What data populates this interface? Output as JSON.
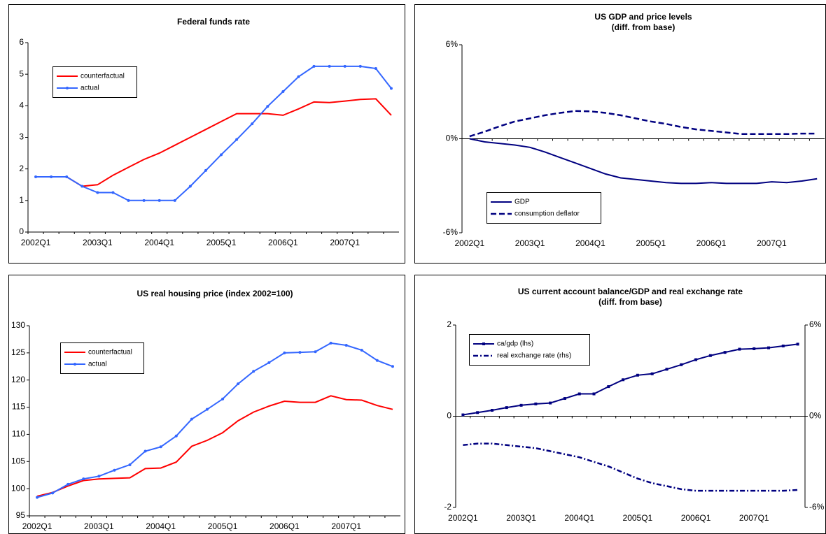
{
  "chart_data": [
    {
      "type": "line",
      "title": "Federal funds rate",
      "categories": [
        "2002Q1",
        null,
        null,
        null,
        "2003Q1",
        null,
        null,
        null,
        "2004Q1",
        null,
        null,
        null,
        "2005Q1",
        null,
        null,
        null,
        "2006Q1",
        null,
        null,
        null,
        "2007Q1",
        null,
        null,
        null
      ],
      "series": [
        {
          "name": "counterfactual",
          "color": "#ff0000",
          "values": [
            1.75,
            1.75,
            1.75,
            1.45,
            1.5,
            1.8,
            2.05,
            2.3,
            2.5,
            2.75,
            3.0,
            3.25,
            3.5,
            3.75,
            3.75,
            3.75,
            3.7,
            3.9,
            4.12,
            4.1,
            4.15,
            4.2,
            4.22,
            3.7
          ]
        },
        {
          "name": "actual",
          "color": "#3366ff",
          "marker": "circle",
          "values": [
            1.75,
            1.75,
            1.75,
            1.45,
            1.25,
            1.25,
            1.0,
            1.0,
            1.0,
            1.0,
            1.45,
            1.95,
            2.45,
            2.93,
            3.43,
            3.98,
            4.45,
            4.92,
            5.25,
            5.25,
            5.25,
            5.25,
            5.18,
            4.55
          ]
        }
      ],
      "ylim": [
        0,
        6
      ],
      "yticks": [
        0,
        1,
        2,
        3,
        4,
        5,
        6
      ]
    },
    {
      "type": "line",
      "title": "US GDP and price levels",
      "subtitle": "(diff. from base)",
      "categories": [
        "2002Q1",
        null,
        null,
        null,
        "2003Q1",
        null,
        null,
        null,
        "2004Q1",
        null,
        null,
        null,
        "2005Q1",
        null,
        null,
        null,
        "2006Q1",
        null,
        null,
        null,
        "2007Q1",
        null,
        null,
        null
      ],
      "series": [
        {
          "name": "GDP",
          "color": "#000080",
          "values": [
            0,
            -0.2,
            -0.3,
            -0.4,
            -0.55,
            -0.85,
            -1.2,
            -1.55,
            -1.9,
            -2.25,
            -2.5,
            -2.6,
            -2.7,
            -2.8,
            -2.85,
            -2.85,
            -2.8,
            -2.85,
            -2.85,
            -2.85,
            -2.75,
            -2.8,
            -2.7,
            -2.55
          ]
        },
        {
          "name": "consumption deflator",
          "color": "#000080",
          "dash": "dash",
          "values": [
            0.15,
            0.45,
            0.8,
            1.1,
            1.3,
            1.5,
            1.65,
            1.77,
            1.75,
            1.65,
            1.5,
            1.3,
            1.1,
            0.95,
            0.75,
            0.6,
            0.5,
            0.4,
            0.3,
            0.3,
            0.3,
            0.3,
            0.33,
            0.33
          ]
        }
      ],
      "ylim": [
        -6,
        6
      ],
      "yticks": [
        {
          "value": -6,
          "label": "-6%"
        },
        {
          "value": 0,
          "label": "0%"
        },
        {
          "value": 6,
          "label": "6%"
        }
      ]
    },
    {
      "type": "line",
      "title": "US real housing price (index 2002=100)",
      "categories": [
        "2002Q1",
        null,
        null,
        null,
        "2003Q1",
        null,
        null,
        null,
        "2004Q1",
        null,
        null,
        null,
        "2005Q1",
        null,
        null,
        null,
        "2006Q1",
        null,
        null,
        null,
        "2007Q1",
        null,
        null,
        null
      ],
      "series": [
        {
          "name": "counterfactual",
          "color": "#ff0000",
          "values": [
            98.6,
            99.3,
            100.5,
            101.5,
            101.8,
            101.9,
            102.0,
            103.7,
            103.8,
            104.9,
            107.8,
            108.9,
            110.3,
            112.5,
            114.1,
            115.2,
            116.1,
            115.9,
            115.9,
            117.1,
            116.4,
            116.3,
            115.3,
            114.6
          ]
        },
        {
          "name": "actual",
          "color": "#3366ff",
          "marker": "circle",
          "values": [
            98.4,
            99.2,
            100.8,
            101.8,
            102.3,
            103.4,
            104.4,
            106.9,
            107.7,
            109.7,
            112.8,
            114.6,
            116.5,
            119.3,
            121.6,
            123.2,
            125.0,
            125.1,
            125.2,
            126.8,
            126.4,
            125.5,
            123.6,
            122.5
          ]
        }
      ],
      "ylim": [
        95,
        130
      ],
      "yticks": [
        95,
        100,
        105,
        110,
        115,
        120,
        125,
        130
      ]
    },
    {
      "type": "line",
      "title": "US current account balance/GDP and real exchange rate",
      "subtitle": "(diff. from base)",
      "categories": [
        "2002Q1",
        null,
        null,
        null,
        "2003Q1",
        null,
        null,
        null,
        "2004Q1",
        null,
        null,
        null,
        "2005Q1",
        null,
        null,
        null,
        "2006Q1",
        null,
        null,
        null,
        "2007Q1",
        null,
        null,
        null
      ],
      "series": [
        {
          "name": "ca/gdp (lhs)",
          "color": "#000080",
          "marker": "square",
          "values": [
            0.03,
            0.08,
            0.13,
            0.19,
            0.24,
            0.27,
            0.29,
            0.39,
            0.49,
            0.49,
            0.65,
            0.8,
            0.9,
            0.93,
            1.03,
            1.13,
            1.24,
            1.33,
            1.4,
            1.47,
            1.48,
            1.5,
            1.54,
            1.58
          ]
        },
        {
          "name": "real  exchange rate (rhs)",
          "color": "#000080",
          "dash": "dashdot",
          "axis": "y2",
          "values": [
            -1.9,
            -1.8,
            -1.8,
            -1.9,
            -2.0,
            -2.1,
            -2.3,
            -2.5,
            -2.7,
            -3.0,
            -3.3,
            -3.7,
            -4.1,
            -4.4,
            -4.6,
            -4.8,
            -4.9,
            -4.9,
            -4.9,
            -4.9,
            -4.9,
            -4.9,
            -4.9,
            -4.85
          ]
        }
      ],
      "ylim": [
        -2,
        2
      ],
      "yticks": [
        -2,
        0,
        2
      ],
      "y2lim": [
        -6,
        6
      ],
      "y2ticks": [
        {
          "value": -6,
          "label": "-6%"
        },
        {
          "value": 0,
          "label": "0%"
        },
        {
          "value": 6,
          "label": "6%"
        }
      ]
    }
  ]
}
